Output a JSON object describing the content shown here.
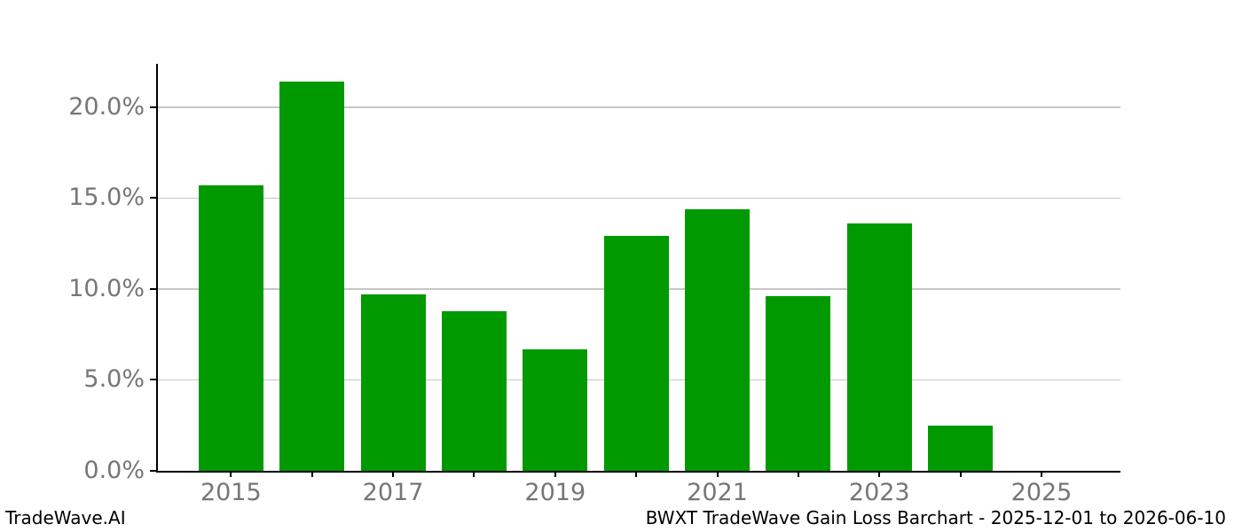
{
  "chart_data": {
    "type": "bar",
    "title": "BWXT TradeWave Gain Loss Barchart - 2025-12-01 to 2026-06-10",
    "categories": [
      "2015",
      "2016",
      "2017",
      "2018",
      "2019",
      "2020",
      "2021",
      "2022",
      "2023",
      "2024",
      "2025"
    ],
    "values": [
      15.7,
      21.4,
      9.7,
      8.8,
      6.7,
      12.9,
      14.4,
      9.6,
      13.6,
      2.5,
      0.0
    ],
    "unit": "%",
    "xlabel": "",
    "ylabel": "",
    "ylim": [
      0,
      22.4
    ],
    "yticks": [
      {
        "value": 0,
        "label": "0.0%"
      },
      {
        "value": 5,
        "label": "5.0%"
      },
      {
        "value": 10,
        "label": "10.0%"
      },
      {
        "value": 15,
        "label": "15.0%"
      },
      {
        "value": 20,
        "label": "20.0%"
      }
    ],
    "xticks_labeled": [
      "2015",
      "2017",
      "2019",
      "2021",
      "2023",
      "2025"
    ],
    "grid": "horizontal",
    "legend": "none",
    "bar_color": "#009a00"
  },
  "footer": {
    "left": "TradeWave.AI",
    "right": "BWXT TradeWave Gain Loss Barchart - 2025-12-01 to 2026-06-10"
  },
  "colors": {
    "bar": "#009a00",
    "grid": "#c6c6c6",
    "axis": "#000000",
    "tick_label": "#767676",
    "footer_text": "#000000",
    "background": "#ffffff"
  }
}
